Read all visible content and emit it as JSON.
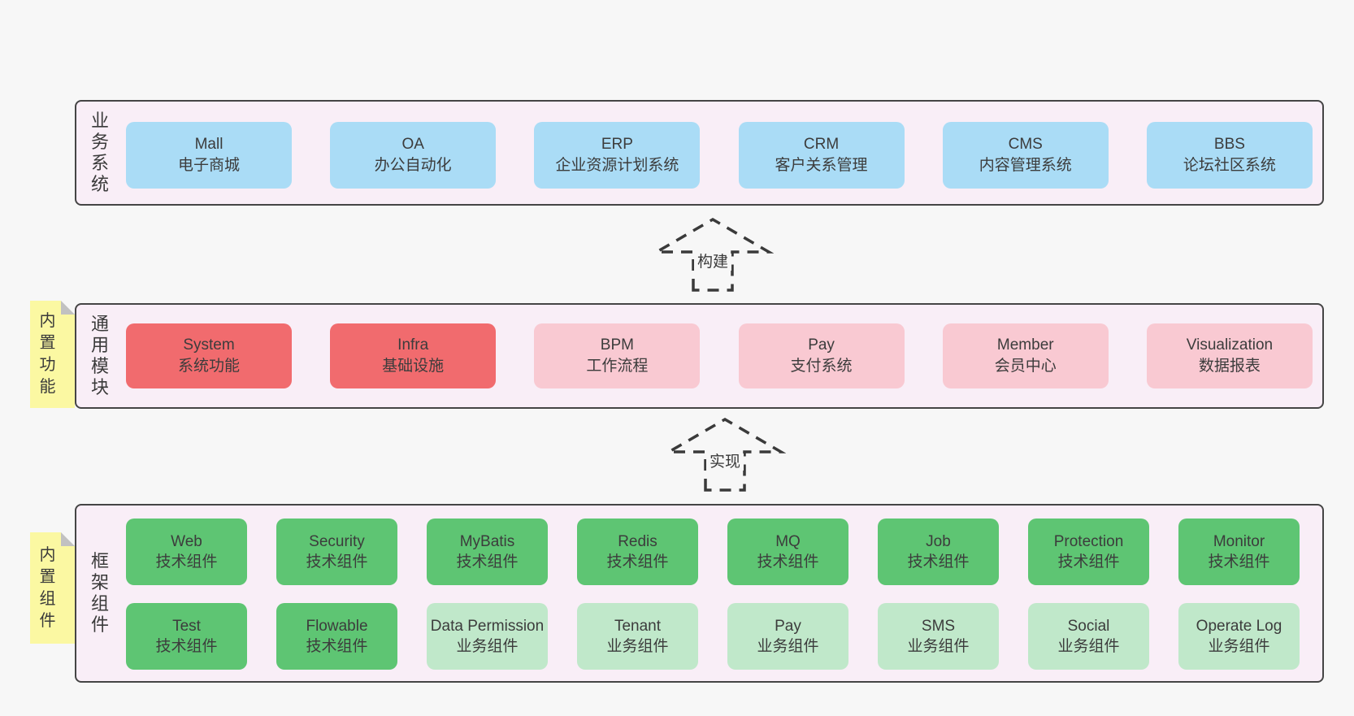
{
  "colors": {
    "page_bg": "#f7f7f7",
    "section_bg": "#f9eef7",
    "section_border": "#454545",
    "blue": "#aadcf6",
    "red": "#f16b6e",
    "pink": "#f9c9d2",
    "green": "#5ec573",
    "light_green": "#c0e8ca",
    "note_yellow": "#fbf8a2",
    "note_fold_gray": "#c1c1c1",
    "arrow_stroke": "#3a3a3a",
    "text": "#3c3c3c"
  },
  "sections": {
    "business": {
      "label": "业务系统",
      "boxes": [
        {
          "name": "Mall",
          "desc": "电子商城",
          "color": "blue"
        },
        {
          "name": "OA",
          "desc": "办公自动化",
          "color": "blue"
        },
        {
          "name": "ERP",
          "desc": "企业资源计划系统",
          "color": "blue"
        },
        {
          "name": "CRM",
          "desc": "客户关系管理",
          "color": "blue"
        },
        {
          "name": "CMS",
          "desc": "内容管理系统",
          "color": "blue"
        },
        {
          "name": "BBS",
          "desc": "论坛社区系统",
          "color": "blue"
        }
      ]
    },
    "modules": {
      "label": "通用模块",
      "note": "内置功能",
      "boxes": [
        {
          "name": "System",
          "desc": "系统功能",
          "color": "red"
        },
        {
          "name": "Infra",
          "desc": "基础设施",
          "color": "red"
        },
        {
          "name": "BPM",
          "desc": "工作流程",
          "color": "pink"
        },
        {
          "name": "Pay",
          "desc": "支付系统",
          "color": "pink"
        },
        {
          "name": "Member",
          "desc": "会员中心",
          "color": "pink"
        },
        {
          "name": "Visualization",
          "desc": "数据报表",
          "color": "pink"
        }
      ]
    },
    "components": {
      "label": "框架组件",
      "note": "内置组件",
      "rows": [
        [
          {
            "name": "Web",
            "desc": "技术组件",
            "color": "green"
          },
          {
            "name": "Security",
            "desc": "技术组件",
            "color": "green"
          },
          {
            "name": "MyBatis",
            "desc": "技术组件",
            "color": "green"
          },
          {
            "name": "Redis",
            "desc": "技术组件",
            "color": "green"
          },
          {
            "name": "MQ",
            "desc": "技术组件",
            "color": "green"
          },
          {
            "name": "Job",
            "desc": "技术组件",
            "color": "green"
          },
          {
            "name": "Protection",
            "desc": "技术组件",
            "color": "green"
          },
          {
            "name": "Monitor",
            "desc": "技术组件",
            "color": "green"
          }
        ],
        [
          {
            "name": "Test",
            "desc": "技术组件",
            "color": "green"
          },
          {
            "name": "Flowable",
            "desc": "技术组件",
            "color": "green"
          },
          {
            "name": "Data Permission",
            "desc": "业务组件",
            "color": "light-green"
          },
          {
            "name": "Tenant",
            "desc": "业务组件",
            "color": "light-green"
          },
          {
            "name": "Pay",
            "desc": "业务组件",
            "color": "light-green"
          },
          {
            "name": "SMS",
            "desc": "业务组件",
            "color": "light-green"
          },
          {
            "name": "Social",
            "desc": "业务组件",
            "color": "light-green"
          },
          {
            "name": "Operate Log",
            "desc": "业务组件",
            "color": "light-green"
          }
        ]
      ]
    }
  },
  "arrows": [
    {
      "label": "构建"
    },
    {
      "label": "实现"
    }
  ]
}
